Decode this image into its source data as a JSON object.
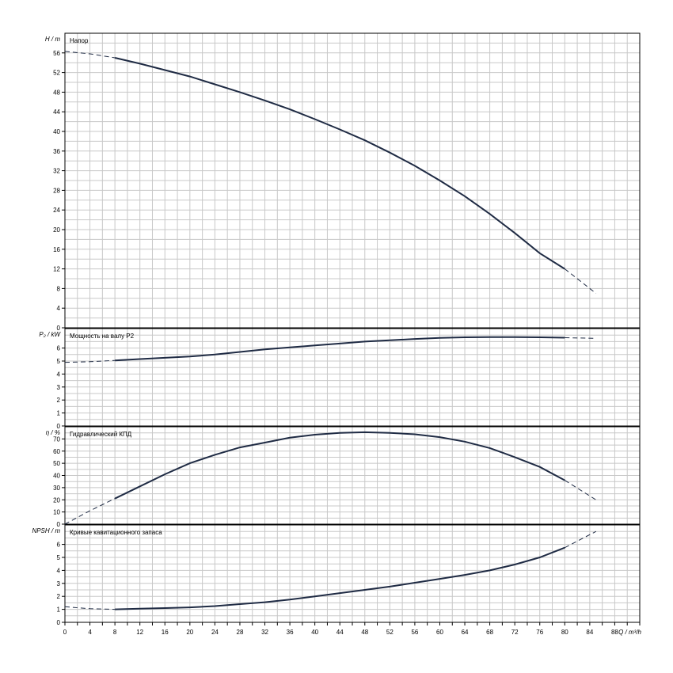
{
  "colors": {
    "curve": "#1f2b44",
    "grid": "#c8c8c8",
    "frame": "#000000"
  },
  "x_axis": {
    "label": "Q / m³/h",
    "min": 0,
    "max": 92,
    "grid_step": 2,
    "tick_step": 4,
    "last_tick_label": 88
  },
  "chart_data": [
    {
      "type": "line",
      "panel": "Напор",
      "ylabel": "H / m",
      "ylim": [
        0,
        60
      ],
      "y_ticks": [
        0,
        4,
        8,
        12,
        16,
        20,
        24,
        28,
        32,
        36,
        40,
        44,
        48,
        52,
        56
      ],
      "y_grid_step": 2,
      "x": [
        0,
        4,
        8,
        12,
        16,
        20,
        24,
        28,
        32,
        36,
        40,
        44,
        48,
        52,
        56,
        60,
        64,
        68,
        72,
        76,
        80,
        85
      ],
      "y": [
        56.3,
        55.8,
        55.0,
        53.8,
        52.5,
        51.2,
        49.6,
        48.0,
        46.3,
        44.5,
        42.5,
        40.4,
        38.2,
        35.7,
        33.0,
        30.0,
        26.8,
        23.2,
        19.3,
        15.2,
        12.0,
        7.0
      ],
      "solid_x_range": [
        8,
        80
      ]
    },
    {
      "type": "line",
      "panel": "Мощность на валу P2",
      "ylabel": "P₂ / kW",
      "ylim": [
        0,
        7.5
      ],
      "y_ticks": [
        0,
        1,
        2,
        3,
        4,
        5,
        6
      ],
      "y_grid_step": 0.5,
      "x": [
        0,
        4,
        8,
        12,
        16,
        20,
        24,
        28,
        32,
        36,
        40,
        44,
        48,
        52,
        56,
        60,
        64,
        68,
        72,
        76,
        80,
        85
      ],
      "y": [
        4.9,
        4.95,
        5.05,
        5.15,
        5.25,
        5.35,
        5.5,
        5.7,
        5.9,
        6.05,
        6.2,
        6.35,
        6.5,
        6.6,
        6.7,
        6.78,
        6.83,
        6.85,
        6.85,
        6.83,
        6.8,
        6.75
      ],
      "solid_x_range": [
        8,
        80
      ]
    },
    {
      "type": "line",
      "panel": "Гидравлический КПД",
      "ylabel": "η / %",
      "ylim": [
        0,
        80
      ],
      "y_ticks": [
        0,
        10,
        20,
        30,
        40,
        50,
        60,
        70
      ],
      "y_grid_step": 5,
      "x": [
        0,
        4,
        8,
        12,
        16,
        20,
        24,
        28,
        32,
        36,
        40,
        44,
        48,
        52,
        56,
        60,
        64,
        68,
        72,
        76,
        80,
        85
      ],
      "y": [
        0,
        11,
        21,
        31,
        41,
        50,
        57,
        63,
        67,
        71,
        73.5,
        75,
        75.5,
        75,
        73.8,
        71.5,
        67.8,
        62.5,
        55,
        47,
        36,
        20
      ],
      "solid_x_range": [
        8,
        80
      ]
    },
    {
      "type": "line",
      "panel": "Кривые кавитационного запаса",
      "ylabel": "NPSH / m",
      "ylim": [
        0,
        7.5
      ],
      "y_ticks": [
        0,
        1,
        2,
        3,
        4,
        5,
        6
      ],
      "y_grid_step": 0.5,
      "x": [
        0,
        4,
        8,
        12,
        16,
        20,
        24,
        28,
        32,
        36,
        40,
        44,
        48,
        52,
        56,
        60,
        64,
        68,
        72,
        76,
        80,
        85
      ],
      "y": [
        1.2,
        1.05,
        1.0,
        1.05,
        1.1,
        1.15,
        1.25,
        1.4,
        1.55,
        1.75,
        2.0,
        2.25,
        2.5,
        2.75,
        3.05,
        3.35,
        3.65,
        4.0,
        4.45,
        5.0,
        5.75,
        7.0
      ],
      "solid_x_range": [
        8,
        80
      ]
    }
  ]
}
